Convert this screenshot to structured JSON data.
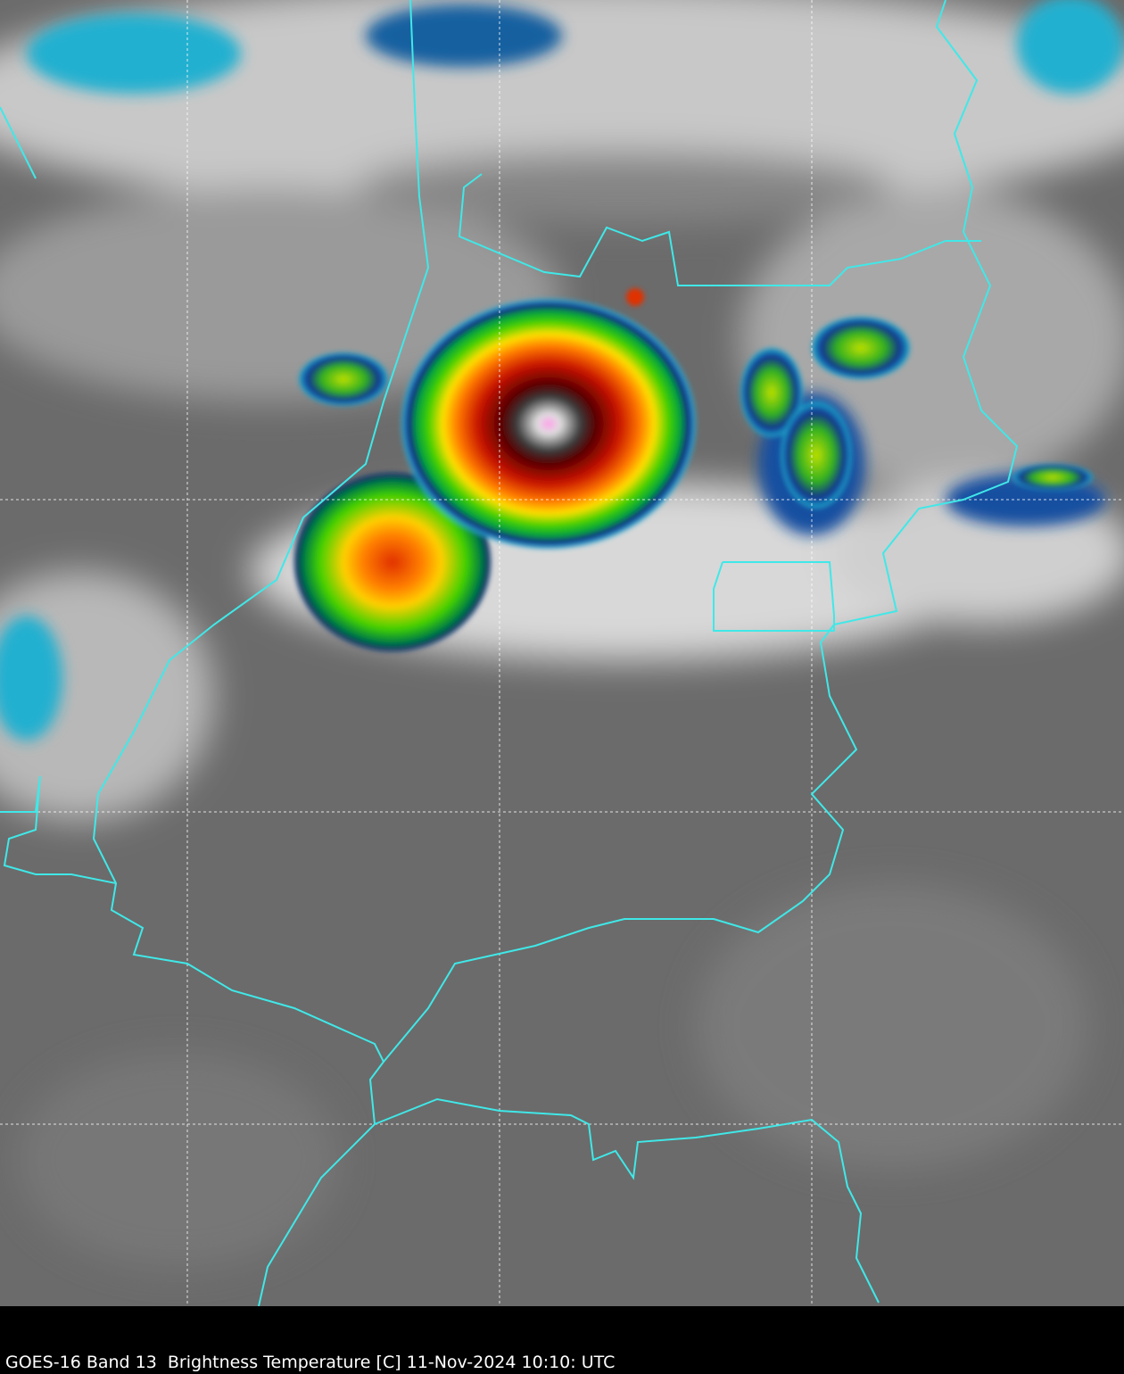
{
  "caption": "GOES-16 Band 13  Brightness Temperature [C] 11-Nov-2024 10:10: UTC"
}
